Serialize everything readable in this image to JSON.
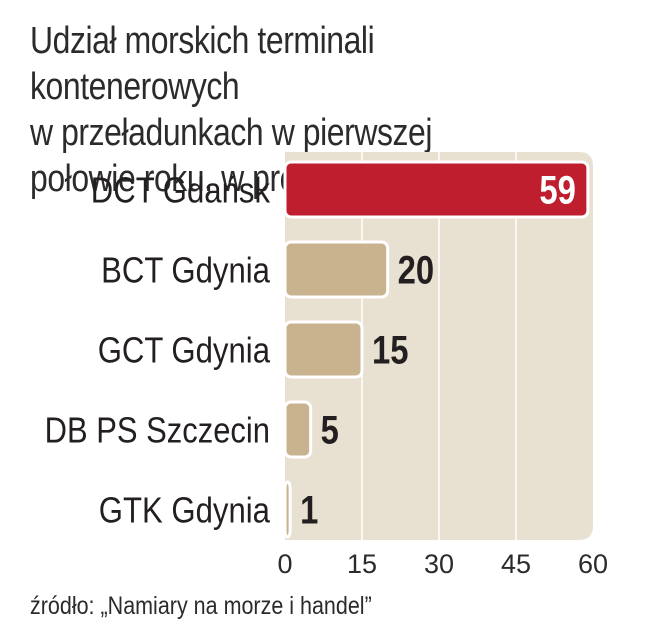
{
  "chart_data": {
    "type": "bar",
    "orientation": "horizontal",
    "title": "Udział morskich terminali kontenerowych\nw przeładunkach w pierwszej\npołowie roku, w proc.",
    "categories": [
      "DCT Gdańsk",
      "BCT Gdynia",
      "GCT Gdynia",
      "DB PS Szczecin",
      "GTK Gdynia"
    ],
    "values": [
      59,
      20,
      15,
      5,
      1
    ],
    "xlim": [
      0,
      60
    ],
    "xticks": [
      0,
      15,
      30,
      45,
      60
    ],
    "grid": true,
    "highlight_index": 0,
    "source": "źródło: „Namiary na morze i handel”"
  },
  "colors": {
    "plot_background": "#e8e0d1",
    "gridline": "#ffffff",
    "highlight_bar": "#be1e2d",
    "bar": "#c9b38f",
    "bar_border": "#ffffff",
    "text": "#231f20",
    "highlight_value_text": "#ffffff"
  }
}
